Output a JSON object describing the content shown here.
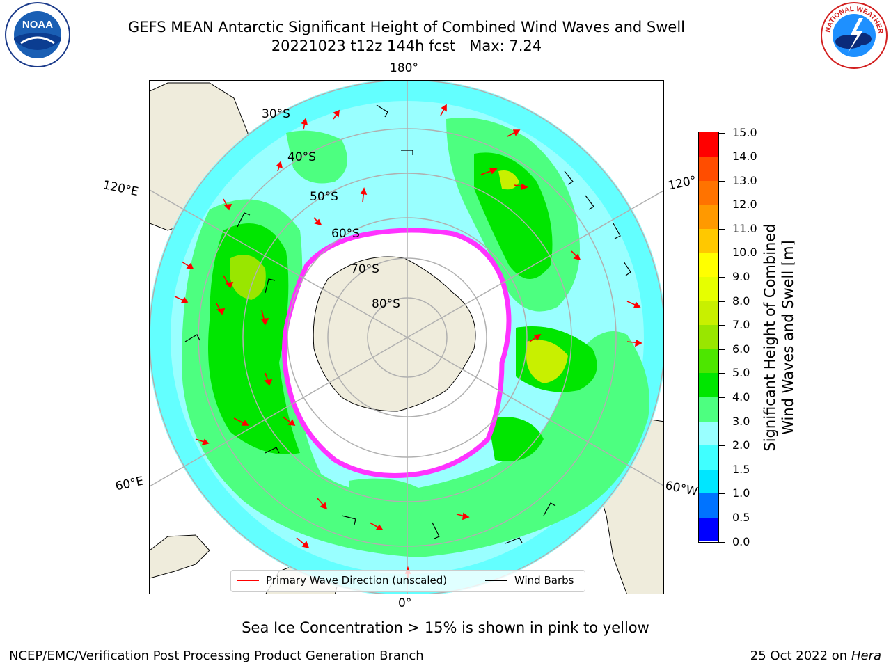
{
  "title": {
    "line1": "GEFS MEAN Antarctic Significant Height of Combined Wind Waves and Swell",
    "line2": "20221023 t12z 144h fcst   Max: 7.24"
  },
  "logos": {
    "left_text": "NOAA",
    "left_ring": "NATIONAL OCEANIC AND ATMOSPHERIC ADMINISTRATION · U.S. DEPARTMENT OF COMMERCE",
    "right_ring": "NATIONAL WEATHER SERVICE"
  },
  "map": {
    "projection": "south-polar-stereographic",
    "longitude_labels": {
      "top": "180°",
      "bottom": "0°",
      "upper_left": "120°E",
      "lower_left": "60°E",
      "upper_right": "120°",
      "lower_right": "60°W"
    },
    "latitude_labels": [
      "30°S",
      "40°S",
      "50°S",
      "60°S",
      "70°S",
      "80°S"
    ],
    "colors": {
      "land": "#efecdc",
      "coast": "#000000",
      "grid": "#b0b0b0",
      "ice_edge": "#ff33ff",
      "ice_fill": "#ffffff",
      "arrow": "#ff0000",
      "barb": "#000000"
    }
  },
  "legend": {
    "wave_label": "Primary Wave Direction (unscaled)",
    "wave_color": "#ff0000",
    "wind_label": "Wind Barbs",
    "wind_color": "#000000"
  },
  "colorbar": {
    "label_line1": "Significant Height of Combined",
    "label_line2": "Wind Waves and Swell [m]",
    "ticks": [
      "0.0",
      "0.5",
      "1.0",
      "1.5",
      "2.0",
      "3.0",
      "4.0",
      "5.0",
      "6.0",
      "7.0",
      "8.0",
      "9.0",
      "10.0",
      "11.0",
      "12.0",
      "13.0",
      "14.0",
      "15.0"
    ],
    "colors": [
      "#0000ff",
      "#0073ff",
      "#00e6ff",
      "#40ffff",
      "#99ffff",
      "#4dff80",
      "#00e600",
      "#4de600",
      "#99e600",
      "#c8f000",
      "#e6ff00",
      "#ffff00",
      "#ffc800",
      "#ff9900",
      "#ff7300",
      "#ff4d00",
      "#ff0000"
    ]
  },
  "caption": "Sea Ice Concentration > 15% is shown in pink to yellow",
  "footer": {
    "left": "NCEP/EMC/Verification Post Processing Product Generation Branch",
    "right_date": "25 Oct 2022 on ",
    "right_host": "Hera"
  }
}
